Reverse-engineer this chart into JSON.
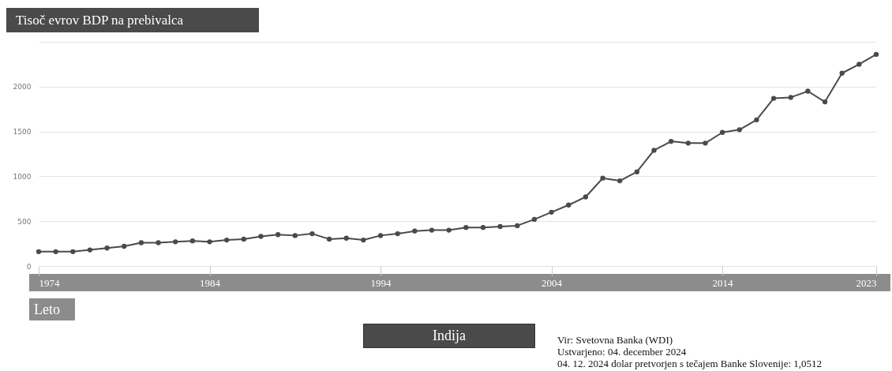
{
  "chart_data": {
    "type": "line",
    "title": "Tisoč evrov BDP na prebivalca",
    "xlabel": "Leto",
    "x": [
      1974,
      1975,
      1976,
      1977,
      1978,
      1979,
      1980,
      1981,
      1982,
      1983,
      1984,
      1985,
      1986,
      1987,
      1988,
      1989,
      1990,
      1991,
      1992,
      1993,
      1994,
      1995,
      1996,
      1997,
      1998,
      1999,
      2000,
      2001,
      2002,
      2003,
      2004,
      2005,
      2006,
      2007,
      2008,
      2009,
      2010,
      2011,
      2012,
      2013,
      2014,
      2015,
      2016,
      2017,
      2018,
      2019,
      2020,
      2021,
      2022,
      2023
    ],
    "series": [
      {
        "name": "Indija",
        "color": "#4a4a4a",
        "values": [
          160,
          160,
          160,
          180,
          200,
          220,
          260,
          260,
          270,
          280,
          270,
          290,
          300,
          330,
          350,
          340,
          360,
          300,
          310,
          290,
          340,
          360,
          390,
          400,
          400,
          430,
          430,
          440,
          450,
          520,
          600,
          680,
          770,
          980,
          950,
          1050,
          1290,
          1390,
          1370,
          1370,
          1490,
          1520,
          1630,
          1870,
          1880,
          1950,
          1830,
          2150,
          2250,
          2360
        ]
      }
    ],
    "xlim": [
      1974,
      2023
    ],
    "xticks": [
      1974,
      1984,
      1994,
      2004,
      2014,
      2023
    ],
    "ylim": [
      0,
      2500
    ],
    "yticks": [
      0,
      500,
      1000,
      1500,
      2000,
      {
        "value": 2500,
        "label": null
      }
    ],
    "grid": "y",
    "marker": "circle",
    "line_style": "solid",
    "legend": "bottom",
    "annotations": [
      "Vir: Svetovna Banka (WDI)",
      "Ustvarjeno: 04. december 2024",
      "04. 12. 2024 dolar pretvorjen s tečajem Banke Slovenije: 1,0512"
    ]
  }
}
